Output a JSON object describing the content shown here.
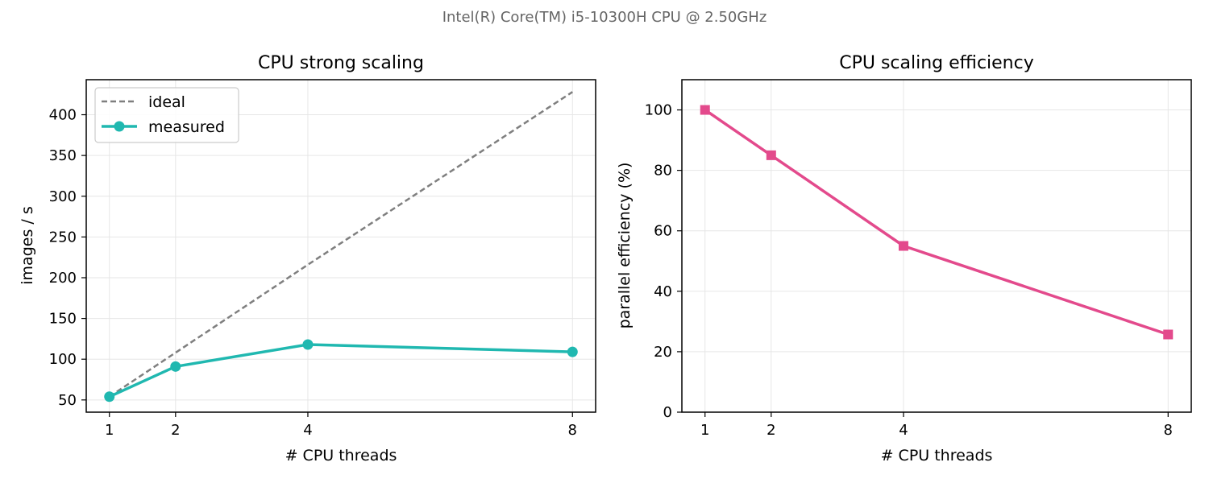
{
  "figure": {
    "suptitle": "Intel(R) Core(TM) i5-10300H CPU @ 2.50GHz"
  },
  "chart_data": [
    {
      "type": "line",
      "title": "CPU strong scaling",
      "xlabel": "# CPU threads",
      "ylabel": "images / s",
      "x": [
        1,
        2,
        4,
        8
      ],
      "xticks": [
        1,
        2,
        4,
        8
      ],
      "yticks": [
        50,
        100,
        150,
        200,
        250,
        300,
        350,
        400
      ],
      "xlim": [
        0.65,
        8.35
      ],
      "ylim": [
        35,
        443
      ],
      "grid": true,
      "legend": "upper-left",
      "series": [
        {
          "name": "ideal",
          "values": [
            54,
            108,
            216,
            428
          ],
          "color": "#7f7f7f",
          "style": "dashed",
          "marker": "none"
        },
        {
          "name": "measured",
          "values": [
            54,
            91,
            118,
            109
          ],
          "color": "#20b8b0",
          "style": "solid",
          "marker": "circle"
        }
      ]
    },
    {
      "type": "line",
      "title": "CPU scaling efficiency",
      "xlabel": "# CPU threads",
      "ylabel": "parallel efficiency (%)",
      "x": [
        1,
        2,
        4,
        8
      ],
      "xticks": [
        1,
        2,
        4,
        8
      ],
      "yticks": [
        0,
        20,
        40,
        60,
        80,
        100
      ],
      "xlim": [
        0.65,
        8.35
      ],
      "ylim": [
        0,
        110
      ],
      "grid": true,
      "series": [
        {
          "values": [
            100,
            85,
            55,
            25.7
          ],
          "color": "#e34a8c",
          "style": "solid",
          "marker": "square"
        }
      ]
    }
  ]
}
